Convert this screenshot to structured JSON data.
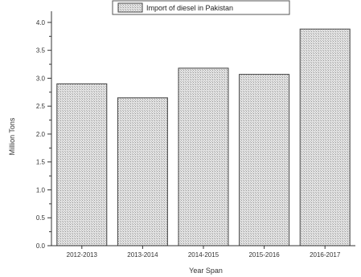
{
  "chart_data": {
    "type": "bar",
    "categories": [
      "2012-2013",
      "2013-2014",
      "2014-2015",
      "2015-2016",
      "2016-2017"
    ],
    "series": [
      {
        "name": "Import of diesel in Pakistan",
        "values": [
          2.9,
          2.65,
          3.18,
          3.07,
          3.88
        ]
      }
    ],
    "xlabel": "Year Span",
    "ylabel": "Million Tons",
    "ylim": [
      0,
      4.2
    ],
    "yticks": [
      "0.0",
      "0.5",
      "1.0",
      "1.5",
      "2.0",
      "2.5",
      "3.0",
      "3.5",
      "4.0"
    ],
    "legend": {
      "position": "top",
      "label": "Import of diesel in Pakistan"
    },
    "grid": false,
    "colors": {
      "bar_fill": "#d9d9d9",
      "bar_stroke": "#444444",
      "axis": "#333333"
    }
  }
}
